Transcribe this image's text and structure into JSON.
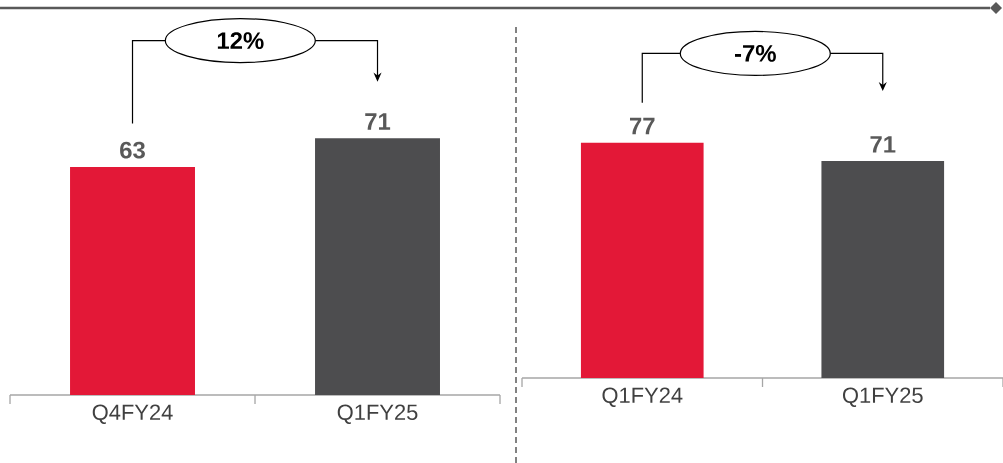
{
  "chart_data": [
    {
      "type": "bar",
      "categories": [
        "Q4FY24",
        "Q1FY25"
      ],
      "values": [
        63,
        71
      ],
      "colors": [
        "#e31837",
        "#4d4d4f"
      ],
      "data_labels": true,
      "annotations": [
        "12%"
      ]
    },
    {
      "type": "bar",
      "categories": [
        "Q1FY24",
        "Q1FY25"
      ],
      "values": [
        77,
        71
      ],
      "colors": [
        "#e31837",
        "#4d4d4f"
      ],
      "data_labels": true,
      "annotations": [
        "-7%"
      ]
    }
  ]
}
